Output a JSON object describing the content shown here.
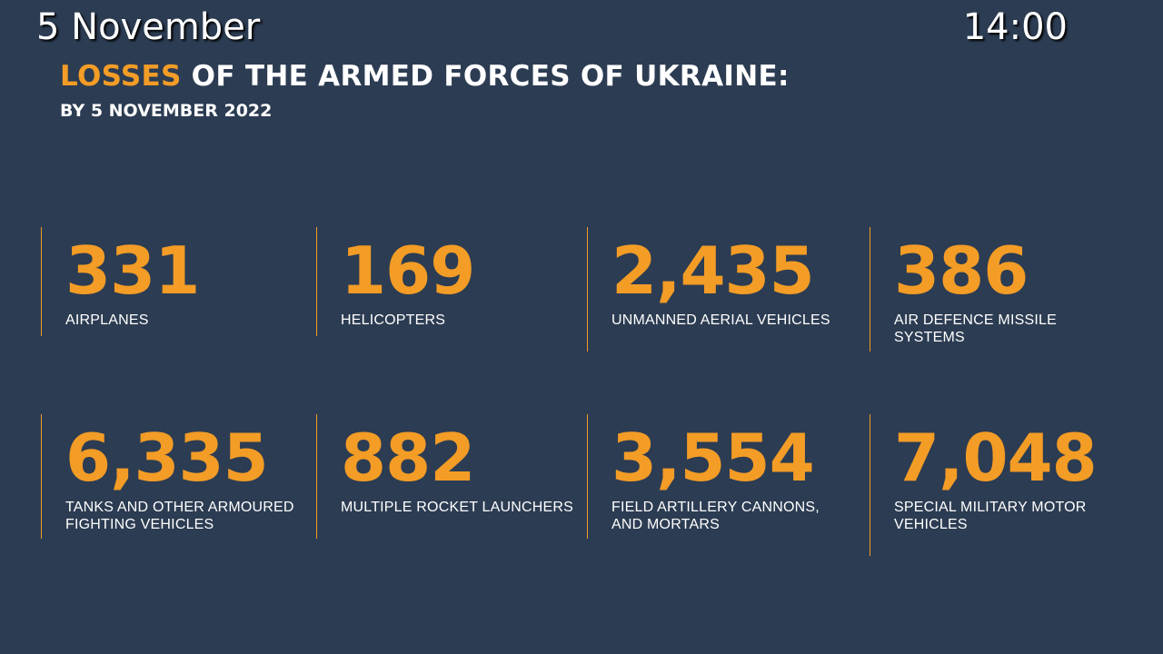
{
  "header": {
    "date": "5 November",
    "time": "14:00"
  },
  "title": {
    "accent": "LOSSES",
    "rest": " OF THE ARMED FORCES OF UKRAINE:",
    "subtitle": "BY 5 NOVEMBER 2022"
  },
  "colors": {
    "background": "#2c3c52",
    "accent": "#f39c26",
    "text": "#ffffff"
  },
  "stats": [
    {
      "value": "331",
      "label": "AIRPLANES"
    },
    {
      "value": "169",
      "label": "HELICOPTERS"
    },
    {
      "value": "2,435",
      "label": "UNMANNED AERIAL VEHICLES"
    },
    {
      "value": "386",
      "label": "AIR DEFENCE MISSILE SYSTEMS"
    },
    {
      "value": "6,335",
      "label": "TANKS AND OTHER ARMOURED FIGHTING VEHICLES"
    },
    {
      "value": "882",
      "label": "MULTIPLE ROCKET LAUNCHERS"
    },
    {
      "value": "3,554",
      "label": "FIELD ARTILLERY CANNONS, AND MORTARS"
    },
    {
      "value": "7,048",
      "label": "SPECIAL MILITARY MOTOR VEHICLES"
    }
  ]
}
